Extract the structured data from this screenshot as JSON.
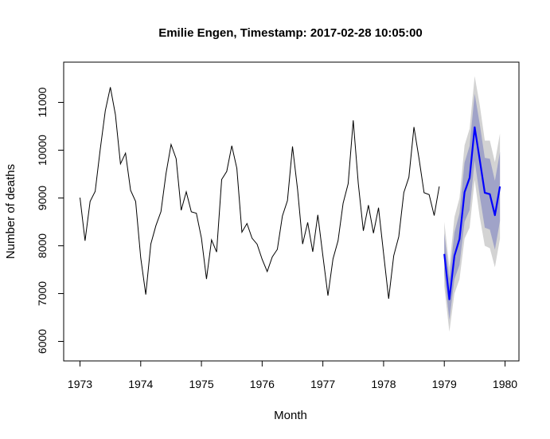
{
  "chart_data": {
    "type": "line",
    "title": "Emilie Engen, Timestamp: 2017-02-28 10:05:00",
    "xlabel": "Month",
    "ylabel": "Number of deaths",
    "xlim": [
      1973,
      1980
    ],
    "ylim": [
      5600,
      11800
    ],
    "xticks": [
      1973,
      1974,
      1975,
      1976,
      1977,
      1978,
      1979,
      1980
    ],
    "yticks": [
      6000,
      7000,
      8000,
      9000,
      10000,
      11000
    ],
    "grid": false,
    "legend": "none",
    "colors": {
      "observed": "#000000",
      "forecast": "#0000ff",
      "band_80": "#a0a3c8",
      "band_95": "#d3d3d3"
    },
    "series": [
      {
        "start": 1973,
        "step": 0.0833333,
        "values": [
          9007,
          8106,
          8928,
          9137,
          10017,
          10826,
          11317,
          10744,
          9713,
          9938,
          9161,
          8927,
          7750,
          6981,
          8038,
          8422,
          8714,
          9512,
          10120,
          9823,
          8743,
          9129,
          8710,
          8680,
          8162,
          7306,
          8124,
          7870,
          9387,
          9556,
          10093,
          9620,
          8285,
          8466,
          8160,
          8034,
          7717,
          7461,
          7767,
          7925,
          8623,
          8945,
          10078,
          9179,
          8037,
          8488,
          7874,
          8647,
          7792,
          6957,
          7726,
          8106,
          8890,
          9299,
          10625,
          9302,
          8314,
          8850,
          8265,
          8796,
          7836,
          6892,
          7791,
          8192,
          9115,
          9434,
          10484,
          9827,
          9110,
          9070,
          8633,
          9240
        ]
      },
      {
        "start": 1979,
        "step": 0.0833333,
        "values": [
          7830,
          6880,
          7790,
          8140,
          9120,
          9420,
          10480,
          9800,
          9110,
          9080,
          8640,
          9240
        ],
        "lower80": [
          7400,
          6450,
          7300,
          7600,
          8500,
          8750,
          9780,
          9050,
          8380,
          8340,
          7920,
          8520
        ],
        "upper80": [
          8260,
          7310,
          8280,
          8680,
          9740,
          10090,
          11180,
          10550,
          9840,
          9820,
          9360,
          9960
        ],
        "lower95": [
          7150,
          6200,
          7000,
          7300,
          8150,
          8380,
          9380,
          8600,
          8000,
          7950,
          7550,
          8150
        ],
        "upper95": [
          8500,
          7550,
          8600,
          9000,
          10100,
          10450,
          11550,
          10950,
          10200,
          10200,
          9750,
          10350
        ]
      }
    ]
  }
}
